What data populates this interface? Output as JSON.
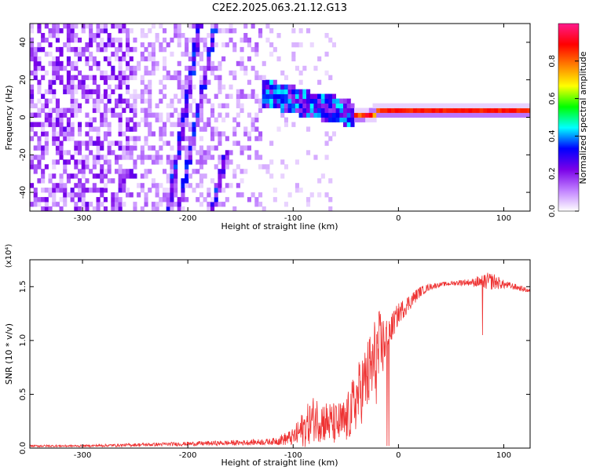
{
  "title": "C2E2.2025.063.21.12.G13",
  "chart_data": [
    {
      "type": "heatmap",
      "xlabel": "Height of straight line (km)",
      "ylabel": "Frequency (Hz)",
      "xlim": [
        -350,
        125
      ],
      "ylim": [
        -50,
        50
      ],
      "x_ticks": [
        -300,
        -200,
        -100,
        0,
        100
      ],
      "x_tick_labels": [
        "-300",
        "-200",
        "-100",
        "0",
        "100"
      ],
      "y_ticks": [
        -40,
        -20,
        0,
        20,
        40
      ],
      "y_tick_labels": [
        "-40",
        "-20",
        "0",
        "20",
        "40"
      ],
      "colorbar": {
        "label": "Normalized spectral amplitude",
        "range": [
          0,
          1
        ],
        "ticks": [
          0.0,
          0.2,
          0.4,
          0.6,
          0.8
        ],
        "tick_labels": [
          "0.0",
          "0.2",
          "0.4",
          "0.6",
          "0.8"
        ],
        "colormap": [
          "#ffffff",
          "#c080ff",
          "#7a00e8",
          "#0000ff",
          "#00ffff",
          "#00ff00",
          "#ffff00",
          "#ff8000",
          "#ff0000",
          "#ff1a8c"
        ]
      },
      "ridge": {
        "x": [
          -130,
          -120,
          -110,
          -100,
          -90,
          -80,
          -70,
          -60,
          -55,
          -50,
          -45,
          -40,
          -30,
          -20,
          -10,
          0,
          20,
          40,
          60,
          80,
          100,
          125
        ],
        "y": [
          12,
          11,
          9,
          8,
          6,
          5,
          4,
          3,
          2,
          1,
          0,
          -1,
          0,
          2,
          2,
          2,
          2,
          2,
          2,
          2,
          2,
          2
        ]
      },
      "streaks": [
        {
          "x": [
            -220,
            -190
          ],
          "y": [
            -50,
            50
          ]
        },
        {
          "x": [
            -210,
            -175
          ],
          "y": [
            -50,
            50
          ]
        },
        {
          "x": [
            -178,
            -165
          ],
          "y": [
            -50,
            -20
          ]
        }
      ]
    },
    {
      "type": "line",
      "xlabel": "Height of straight line (km)",
      "ylabel": "SNR (10 * v/v)",
      "scale_label": "(x10⁴)",
      "xlim": [
        -350,
        125
      ],
      "ylim": [
        0,
        1.75
      ],
      "x_ticks": [
        -300,
        -200,
        -100,
        0,
        100
      ],
      "x_tick_labels": [
        "-300",
        "-200",
        "-100",
        "0",
        "100"
      ],
      "y_ticks": [
        0.0,
        0.5,
        1.0,
        1.5
      ],
      "y_tick_labels": [
        "0.0",
        "0.5",
        "1.0",
        "1.5"
      ],
      "color": "#ee3333",
      "x": [
        -350,
        -300,
        -250,
        -200,
        -150,
        -120,
        -100,
        -90,
        -80,
        -70,
        -60,
        -50,
        -40,
        -30,
        -20,
        -10,
        0,
        10,
        20,
        30,
        40,
        50,
        60,
        70,
        80,
        90,
        100,
        110,
        125
      ],
      "y": [
        0.02,
        0.02,
        0.03,
        0.04,
        0.05,
        0.06,
        0.1,
        0.18,
        0.28,
        0.25,
        0.22,
        0.24,
        0.45,
        0.65,
        0.85,
        1.05,
        1.25,
        1.35,
        1.45,
        1.5,
        1.52,
        1.53,
        1.54,
        1.54,
        1.55,
        1.55,
        1.52,
        1.5,
        1.46
      ],
      "noise": [
        0.01,
        0.01,
        0.015,
        0.02,
        0.025,
        0.03,
        0.08,
        0.18,
        0.22,
        0.2,
        0.2,
        0.22,
        0.3,
        0.35,
        0.45,
        0.15,
        0.1,
        0.08,
        0.05,
        0.03,
        0.02,
        0.02,
        0.03,
        0.03,
        0.08,
        0.08,
        0.04,
        0.03,
        0.02
      ]
    }
  ]
}
